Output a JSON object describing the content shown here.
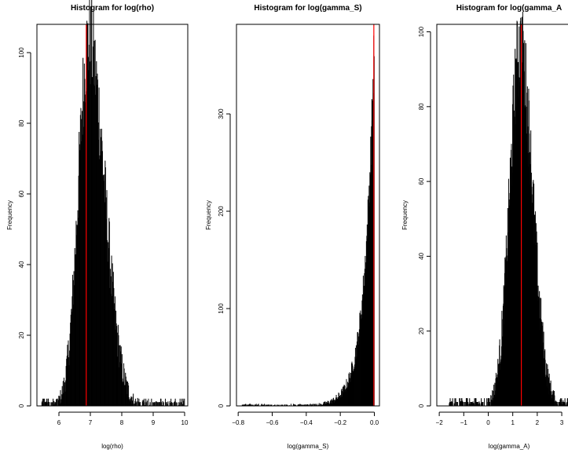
{
  "chart_data": [
    {
      "type": "bar",
      "title": "Histogram for log(rho)",
      "xlabel": "log(rho)",
      "ylabel": "Frequency",
      "xlim": [
        5.3,
        10.1
      ],
      "ylim": [
        0,
        108
      ],
      "xticks": [
        6,
        7,
        8,
        9,
        10
      ],
      "yticks": [
        0,
        20,
        40,
        60,
        80,
        100
      ],
      "xtick_labels": [
        "6",
        "7",
        "8",
        "9",
        "10"
      ],
      "ytick_labels": [
        "0",
        "20",
        "40",
        "60",
        "80",
        "100"
      ],
      "distribution": "normal",
      "mode": 6.95,
      "bin_range": [
        5.45,
        10.0
      ],
      "peak_frequency": 103,
      "left_sigma": 0.33,
      "right_sigma": 0.5,
      "ref_line": 6.87,
      "ref_line_color": "#ff0000",
      "bar_color": "#000000",
      "grid": false
    },
    {
      "type": "bar",
      "title": "Histogram for log(gamma_S)",
      "xlabel": "log(gamma_S)",
      "ylabel": "Frequency",
      "xlim": [
        -0.81,
        0.03
      ],
      "ylim": [
        0,
        392
      ],
      "xticks": [
        -0.8,
        -0.6,
        -0.4,
        -0.2,
        0.0
      ],
      "yticks": [
        0,
        100,
        200,
        300
      ],
      "xtick_labels": [
        "−0.8",
        "−0.6",
        "−0.4",
        "−0.2",
        "0.0"
      ],
      "ytick_labels": [
        "0",
        "100",
        "200",
        "300"
      ],
      "distribution": "exponential",
      "mode": 0.0,
      "bin_range": [
        -0.78,
        0.0
      ],
      "peak_frequency": 380,
      "decay_scale": 0.057,
      "ref_line": -0.003,
      "ref_line_color": "#ff0000",
      "bar_color": "#000000",
      "grid": false
    },
    {
      "type": "bar",
      "title": "Histogram for log(gamma_A",
      "xlabel": "log(gamma_A)",
      "ylabel": "Frequency",
      "xlim": [
        -2.1,
        3.8
      ],
      "ylim": [
        0,
        102
      ],
      "xticks": [
        -2,
        -1,
        0,
        1,
        2,
        3
      ],
      "yticks": [
        0,
        20,
        40,
        60,
        80,
        100
      ],
      "xtick_labels": [
        "−2",
        "−1",
        "0",
        "1",
        "2",
        "3"
      ],
      "ytick_labels": [
        "0",
        "20",
        "40",
        "60",
        "80",
        "100"
      ],
      "distribution": "normal",
      "mode": 1.3,
      "bin_range": [
        -1.6,
        3.8
      ],
      "peak_frequency": 95,
      "left_sigma": 0.42,
      "right_sigma": 0.5,
      "ref_line": 1.35,
      "ref_line_color": "#ff0000",
      "bar_color": "#000000",
      "grid": false
    }
  ]
}
